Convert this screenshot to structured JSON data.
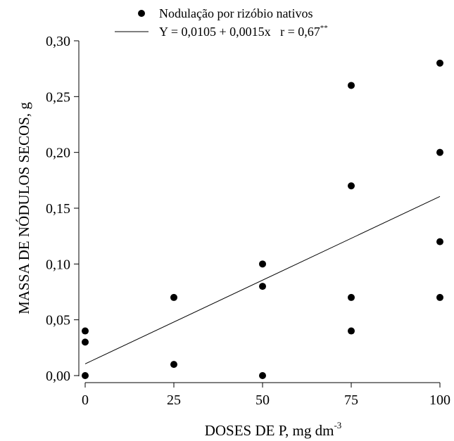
{
  "chart_data": {
    "type": "scatter",
    "xlabel": "DOSES DE P, mg dm",
    "xlabel_superscript": "-3",
    "ylabel": "MASSA DE NÓDULOS SECOS, g",
    "xlim": [
      0,
      100
    ],
    "ylim": [
      0,
      0.3
    ],
    "x_ticks": [
      0,
      25,
      50,
      75,
      100
    ],
    "x_tick_labels": [
      "0",
      "25",
      "50",
      "75",
      "100"
    ],
    "y_ticks": [
      0,
      0.05,
      0.1,
      0.15,
      0.2,
      0.25,
      0.3
    ],
    "y_tick_labels": [
      "0,00",
      "0,05",
      "0,10",
      "0,15",
      "0,20",
      "0,25",
      "0,30"
    ],
    "grid": false,
    "legend_position": "top-center",
    "legend": {
      "points_label": "Nodulação por rizóbio nativos",
      "line_label": "Y = 0,0105 + 0,0015x   r = 0,67",
      "line_label_superscript": "**"
    },
    "series": [
      {
        "name": "Nodulação por rizóbio nativos",
        "kind": "points",
        "x": [
          0,
          0,
          0,
          25,
          25,
          50,
          50,
          50,
          75,
          75,
          75,
          75,
          100,
          100,
          100,
          100
        ],
        "y": [
          0.0,
          0.03,
          0.04,
          0.01,
          0.07,
          0.0,
          0.08,
          0.1,
          0.04,
          0.07,
          0.17,
          0.26,
          0.07,
          0.12,
          0.2,
          0.28
        ]
      },
      {
        "name": "Y = 0,0105 + 0,0015x",
        "kind": "regression-line",
        "intercept": 0.0105,
        "slope": 0.0015,
        "x": [
          0,
          100
        ],
        "y": [
          0.0105,
          0.1605
        ]
      }
    ]
  }
}
